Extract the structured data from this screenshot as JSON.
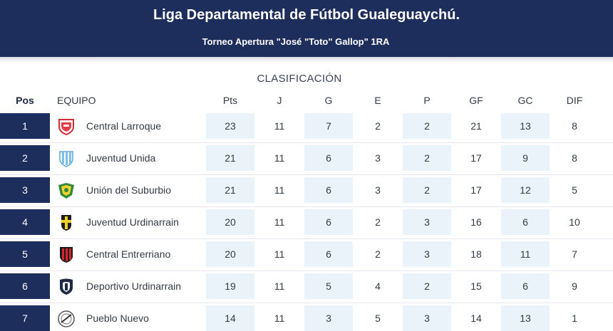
{
  "header": {
    "title": "Liga Departamental de Fútbol Gualeguaychú.",
    "subtitle": "Torneo Apertura \"José \"Toto\" Gallop\" 1RA",
    "bg_color": "#1e2e5c"
  },
  "table": {
    "section_label": "CLASIFICACIÓN",
    "columns": {
      "pos": "Pos",
      "team": "EQUIPO",
      "pts": "Pts",
      "j": "J",
      "g": "G",
      "e": "E",
      "p": "P",
      "gf": "GF",
      "gc": "GC",
      "dif": "DIF"
    },
    "rows": [
      {
        "pos": "1",
        "team": "Central Larroque",
        "crest": "crest-central-larroque-icon",
        "pts": "23",
        "j": "11",
        "g": "7",
        "e": "2",
        "p": "2",
        "gf": "21",
        "gc": "13",
        "dif": "8"
      },
      {
        "pos": "2",
        "team": "Juventud Unida",
        "crest": "crest-juventud-unida-icon",
        "pts": "21",
        "j": "11",
        "g": "6",
        "e": "3",
        "p": "2",
        "gf": "17",
        "gc": "9",
        "dif": "8"
      },
      {
        "pos": "3",
        "team": "Unión del Suburbio",
        "crest": "crest-union-del-suburbio-icon",
        "pts": "21",
        "j": "11",
        "g": "6",
        "e": "3",
        "p": "2",
        "gf": "17",
        "gc": "12",
        "dif": "5"
      },
      {
        "pos": "4",
        "team": "Juventud Urdinarrain",
        "crest": "crest-juventud-urdinarrain-icon",
        "pts": "20",
        "j": "11",
        "g": "6",
        "e": "2",
        "p": "3",
        "gf": "16",
        "gc": "6",
        "dif": "10"
      },
      {
        "pos": "5",
        "team": "Central Entrerriano",
        "crest": "crest-central-entrerriano-icon",
        "pts": "20",
        "j": "11",
        "g": "6",
        "e": "2",
        "p": "3",
        "gf": "18",
        "gc": "11",
        "dif": "7"
      },
      {
        "pos": "6",
        "team": "Deportivo Urdinarrain",
        "crest": "crest-deportivo-urdinarrain-icon",
        "pts": "19",
        "j": "11",
        "g": "5",
        "e": "4",
        "p": "2",
        "gf": "15",
        "gc": "6",
        "dif": "9"
      },
      {
        "pos": "7",
        "team": "Pueblo Nuevo",
        "crest": "crest-pueblo-nuevo-icon",
        "pts": "14",
        "j": "11",
        "g": "3",
        "e": "5",
        "p": "3",
        "gf": "14",
        "gc": "13",
        "dif": "1"
      }
    ]
  }
}
